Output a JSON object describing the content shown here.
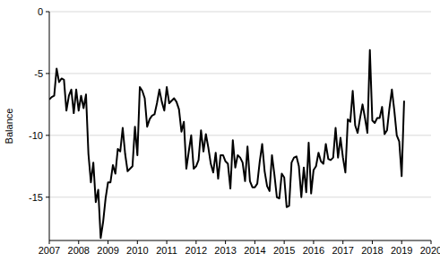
{
  "chart_data": {
    "type": "line",
    "y_label": "Balance",
    "color": "#000000",
    "grid": true,
    "xlim": [
      2007,
      2020
    ],
    "xticks": [
      2007,
      2008,
      2009,
      2010,
      2011,
      2012,
      2013,
      2014,
      2015,
      2016,
      2017,
      2018,
      2019,
      2020
    ],
    "ylim": [
      -18.5,
      0
    ],
    "yticks": [
      -15,
      -10,
      -5,
      0
    ],
    "x": [
      2007,
      2007.083,
      2007.167,
      2007.25,
      2007.333,
      2007.417,
      2007.5,
      2007.583,
      2007.667,
      2007.75,
      2007.833,
      2007.917,
      2008,
      2008.083,
      2008.167,
      2008.25,
      2008.333,
      2008.417,
      2008.5,
      2008.583,
      2008.667,
      2008.75,
      2008.833,
      2008.917,
      2009,
      2009.083,
      2009.167,
      2009.25,
      2009.333,
      2009.417,
      2009.5,
      2009.583,
      2009.667,
      2009.75,
      2009.833,
      2009.917,
      2010,
      2010.083,
      2010.167,
      2010.25,
      2010.333,
      2010.417,
      2010.5,
      2010.583,
      2010.667,
      2010.75,
      2010.833,
      2010.917,
      2011,
      2011.083,
      2011.167,
      2011.25,
      2011.333,
      2011.417,
      2011.5,
      2011.583,
      2011.667,
      2011.75,
      2011.833,
      2011.917,
      2012,
      2012.083,
      2012.167,
      2012.25,
      2012.333,
      2012.417,
      2012.5,
      2012.583,
      2012.667,
      2012.75,
      2012.833,
      2012.917,
      2013,
      2013.083,
      2013.167,
      2013.25,
      2013.333,
      2013.417,
      2013.5,
      2013.583,
      2013.667,
      2013.75,
      2013.833,
      2013.917,
      2014,
      2014.083,
      2014.167,
      2014.25,
      2014.333,
      2014.417,
      2014.5,
      2014.583,
      2014.667,
      2014.75,
      2014.833,
      2014.917,
      2015,
      2015.083,
      2015.167,
      2015.25,
      2015.333,
      2015.417,
      2015.5,
      2015.583,
      2015.667,
      2015.75,
      2015.833,
      2015.917,
      2016,
      2016.083,
      2016.167,
      2016.25,
      2016.333,
      2016.417,
      2016.5,
      2016.583,
      2016.667,
      2016.75,
      2016.833,
      2016.917,
      2017,
      2017.083,
      2017.167,
      2017.25,
      2017.333,
      2017.417,
      2017.5,
      2017.583,
      2017.667,
      2017.75,
      2017.833,
      2017.917,
      2018,
      2018.083,
      2018.167,
      2018.25,
      2018.333,
      2018.417,
      2018.5,
      2018.583,
      2018.667,
      2018.75,
      2018.833,
      2018.917,
      2019,
      2019.083
    ],
    "values": [
      -7.1,
      -6.9,
      -6.8,
      -4.6,
      -5.7,
      -5.4,
      -5.5,
      -8.0,
      -6.8,
      -6.3,
      -8.2,
      -6.3,
      -8.0,
      -6.8,
      -7.8,
      -6.7,
      -11.5,
      -13.8,
      -12.2,
      -15.4,
      -14.4,
      -18.3,
      -17.0,
      -15.1,
      -13.8,
      -13.8,
      -12.4,
      -13.1,
      -11.1,
      -11.3,
      -9.4,
      -11.5,
      -12.9,
      -12.7,
      -12.5,
      -9.3,
      -11.6,
      -6.1,
      -6.4,
      -7.0,
      -9.3,
      -8.7,
      -8.4,
      -8.3,
      -7.4,
      -6.3,
      -7.3,
      -8.0,
      -6.1,
      -7.4,
      -7.2,
      -7.0,
      -7.3,
      -7.9,
      -9.7,
      -8.9,
      -12.7,
      -11.3,
      -10.0,
      -12.7,
      -12.5,
      -12.0,
      -9.6,
      -11.3,
      -9.9,
      -11.0,
      -12.3,
      -13.0,
      -11.4,
      -13.5,
      -11.6,
      -11.6,
      -12.1,
      -12.3,
      -14.3,
      -10.4,
      -12.6,
      -11.6,
      -11.8,
      -12.2,
      -13.7,
      -10.9,
      -13.7,
      -14.2,
      -14.2,
      -13.9,
      -12.1,
      -10.7,
      -12.9,
      -14.1,
      -14.5,
      -11.6,
      -13.2,
      -15.0,
      -15.1,
      -13.1,
      -13.4,
      -15.8,
      -15.7,
      -12.2,
      -11.8,
      -11.7,
      -12.5,
      -15.0,
      -12.6,
      -14.6,
      -10.6,
      -14.7,
      -12.8,
      -12.5,
      -11.4,
      -12.1,
      -12.3,
      -10.7,
      -11.9,
      -12.0,
      -11.8,
      -9.4,
      -11.8,
      -10.2,
      -11.8,
      -13.0,
      -8.7,
      -8.9,
      -6.4,
      -9.2,
      -9.8,
      -8.6,
      -7.5,
      -8.6,
      -9.8,
      -3.1,
      -8.8,
      -9.0,
      -8.6,
      -8.6,
      -7.7,
      -9.9,
      -9.6,
      -7.8,
      -6.3,
      -8.0,
      -10.0,
      -10.5,
      -13.3,
      -7.2
    ]
  }
}
